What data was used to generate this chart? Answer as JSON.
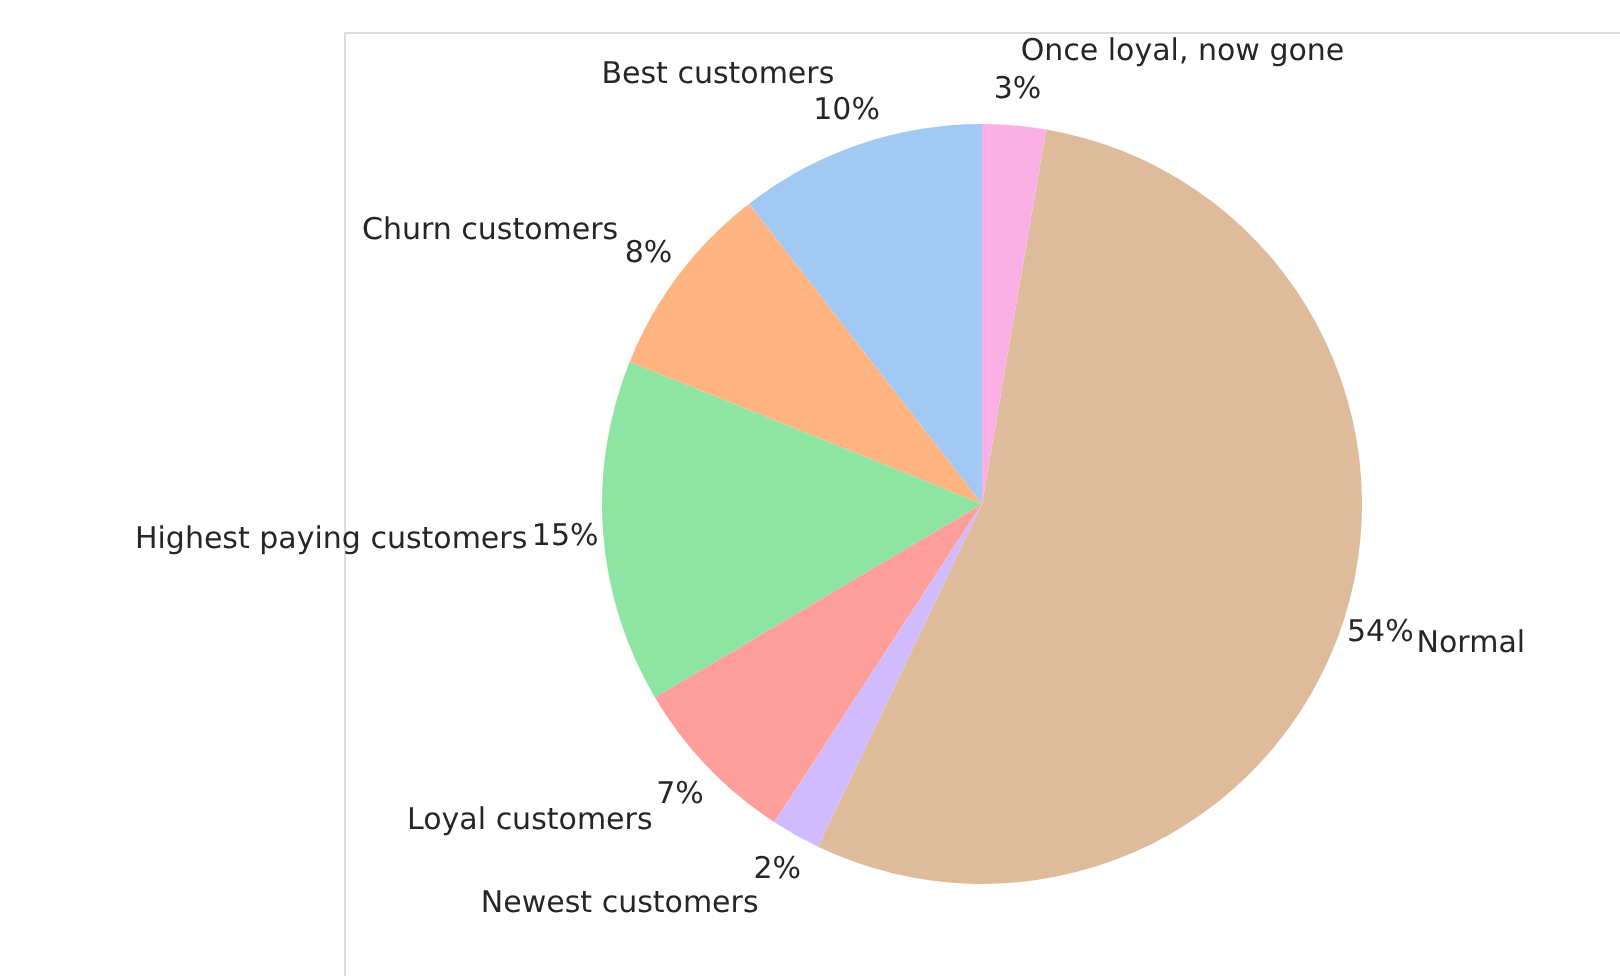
{
  "chart_data": {
    "type": "pie",
    "categories": [
      "Best customers",
      "Churn customers",
      "Highest paying customers",
      "Loyal customers",
      "Newest customers",
      "Normal",
      "Once loyal, now gone"
    ],
    "values": [
      10.5,
      8.4,
      14.6,
      7.3,
      2.1,
      54.4,
      2.7
    ],
    "value_labels": [
      "10%",
      "8%",
      "15%",
      "7%",
      "2%",
      "54%",
      "3%"
    ],
    "colors": [
      "#a1c9f4",
      "#ffb482",
      "#8de5a1",
      "#ff9f9b",
      "#d0bbff",
      "#debb9b",
      "#fab0e4"
    ]
  }
}
